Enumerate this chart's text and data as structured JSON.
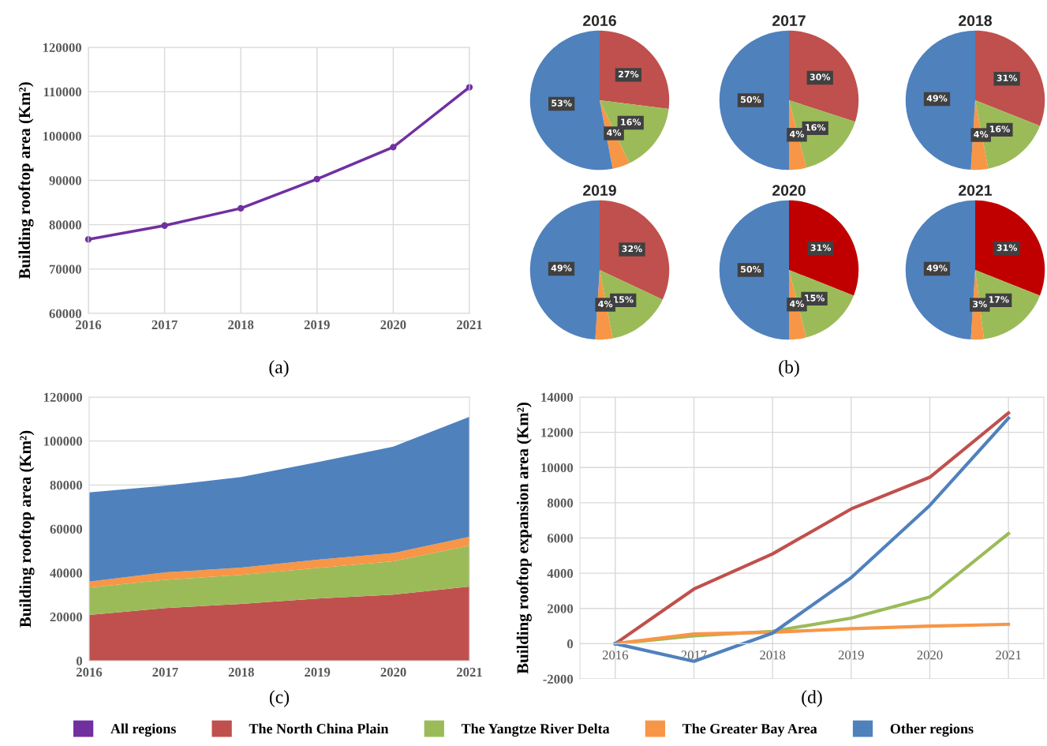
{
  "chart_data": [
    {
      "type": "line",
      "x": [
        2016,
        2017,
        2018,
        2019,
        2020,
        2021
      ],
      "ylabel": "Building rooftop area (Km²)",
      "xlim": [
        2016,
        2021
      ],
      "xticks": [
        2016,
        2017,
        2018,
        2019,
        2020,
        2021
      ],
      "ylim": [
        60000,
        120000
      ],
      "yticks": [
        60000,
        70000,
        80000,
        90000,
        100000,
        110000,
        120000
      ],
      "grid": true,
      "marker": "circle",
      "legend": "bottom",
      "annotations": [
        "(a)"
      ],
      "series": [
        {
          "name": "All regions",
          "color": "#7030a0",
          "values": [
            76700,
            79800,
            83700,
            90300,
            97500,
            111000
          ]
        }
      ]
    },
    {
      "type": "pie",
      "title": "2016",
      "categories": [
        null,
        null,
        null,
        null
      ],
      "values": [
        27,
        16,
        4,
        53
      ],
      "value_labels": [
        "27%",
        "16%",
        "4%",
        "53%"
      ],
      "colors": [
        "#c0504d",
        "#9bbb59",
        "#f79646",
        "#4f81bd"
      ]
    },
    {
      "type": "pie",
      "title": "2017",
      "categories": [
        null,
        null,
        null,
        null
      ],
      "values": [
        30,
        16,
        4,
        50
      ],
      "value_labels": [
        "30%",
        "16%",
        "4%",
        "50%"
      ],
      "colors": [
        "#c0504d",
        "#9bbb59",
        "#f79646",
        "#4f81bd"
      ]
    },
    {
      "type": "pie",
      "title": "2018",
      "categories": [
        null,
        null,
        null,
        null
      ],
      "values": [
        31,
        16,
        4,
        49
      ],
      "value_labels": [
        "31%",
        "16%",
        "4%",
        "49%"
      ],
      "colors": [
        "#c0504d",
        "#9bbb59",
        "#f79646",
        "#4f81bd"
      ]
    },
    {
      "type": "pie",
      "title": "2019",
      "categories": [
        null,
        null,
        null,
        null
      ],
      "values": [
        32,
        15,
        4,
        49
      ],
      "value_labels": [
        "32%",
        "15%",
        "4%",
        "49%"
      ],
      "colors": [
        "#c0504d",
        "#9bbb59",
        "#f79646",
        "#4f81bd"
      ]
    },
    {
      "type": "pie",
      "title": "2020",
      "categories": [
        null,
        null,
        null,
        null
      ],
      "values": [
        31,
        15,
        4,
        50
      ],
      "value_labels": [
        "31%",
        "15%",
        "4%",
        "50%"
      ],
      "colors": [
        "#c00000",
        "#9bbb59",
        "#f79646",
        "#4f81bd"
      ],
      "annotations": [
        "(b)"
      ]
    },
    {
      "type": "pie",
      "title": "2021",
      "categories": [
        null,
        null,
        null,
        null
      ],
      "values": [
        31,
        17,
        3,
        49
      ],
      "value_labels": [
        "31%",
        "17%",
        "3%",
        "49%"
      ],
      "colors": [
        "#c00000",
        "#9bbb59",
        "#f79646",
        "#4f81bd"
      ]
    },
    {
      "type": "area",
      "stacked": true,
      "x": [
        2016,
        2017,
        2018,
        2019,
        2020,
        2021
      ],
      "ylabel": "Building rooftop area (Km²)",
      "xlim": [
        2016,
        2021
      ],
      "xticks": [
        2016,
        2017,
        2018,
        2019,
        2020,
        2021
      ],
      "ylim": [
        0,
        120000
      ],
      "yticks": [
        0,
        20000,
        40000,
        60000,
        80000,
        100000,
        120000
      ],
      "grid": "y",
      "legend": "bottom",
      "annotations": [
        "(c)"
      ],
      "series": [
        {
          "name": "The North China Plain",
          "color": "#c0504d",
          "values": [
            20800,
            24000,
            25900,
            28300,
            30100,
            33800
          ]
        },
        {
          "name": "The Yangtze River Delta",
          "color": "#9bbb59",
          "values": [
            12500,
            12800,
            13200,
            13900,
            15200,
            18600
          ]
        },
        {
          "name": "The Greater Bay Area",
          "color": "#f79646",
          "values": [
            2700,
            3400,
            3300,
            3800,
            3700,
            4000
          ]
        },
        {
          "name": "Other regions",
          "color": "#4f81bd",
          "values": [
            40600,
            39500,
            41200,
            44400,
            48500,
            54600
          ]
        }
      ]
    },
    {
      "type": "line",
      "categories": [
        "2016",
        "2017",
        "2018",
        "2019",
        "2020",
        "2021"
      ],
      "ylabel": "Building rooftop expansion area (Km²)",
      "ylim": [
        -2000,
        14000
      ],
      "yticks": [
        -2000,
        0,
        2000,
        4000,
        6000,
        8000,
        10000,
        12000,
        14000
      ],
      "grid": true,
      "legend": "bottom",
      "annotations": [
        "(d)"
      ],
      "series": [
        {
          "name": "The North China Plain",
          "color": "#c0504d",
          "values": [
            0,
            3100,
            5100,
            7650,
            9450,
            13100
          ]
        },
        {
          "name": "The Yangtze River Delta",
          "color": "#9bbb59",
          "values": [
            0,
            450,
            700,
            1450,
            2650,
            6250
          ]
        },
        {
          "name": "The Greater Bay Area",
          "color": "#f79646",
          "values": [
            0,
            550,
            650,
            850,
            1000,
            1100
          ]
        },
        {
          "name": "Other regions",
          "color": "#4f81bd",
          "values": [
            0,
            -1000,
            600,
            3750,
            7850,
            12800
          ]
        }
      ]
    }
  ]
}
